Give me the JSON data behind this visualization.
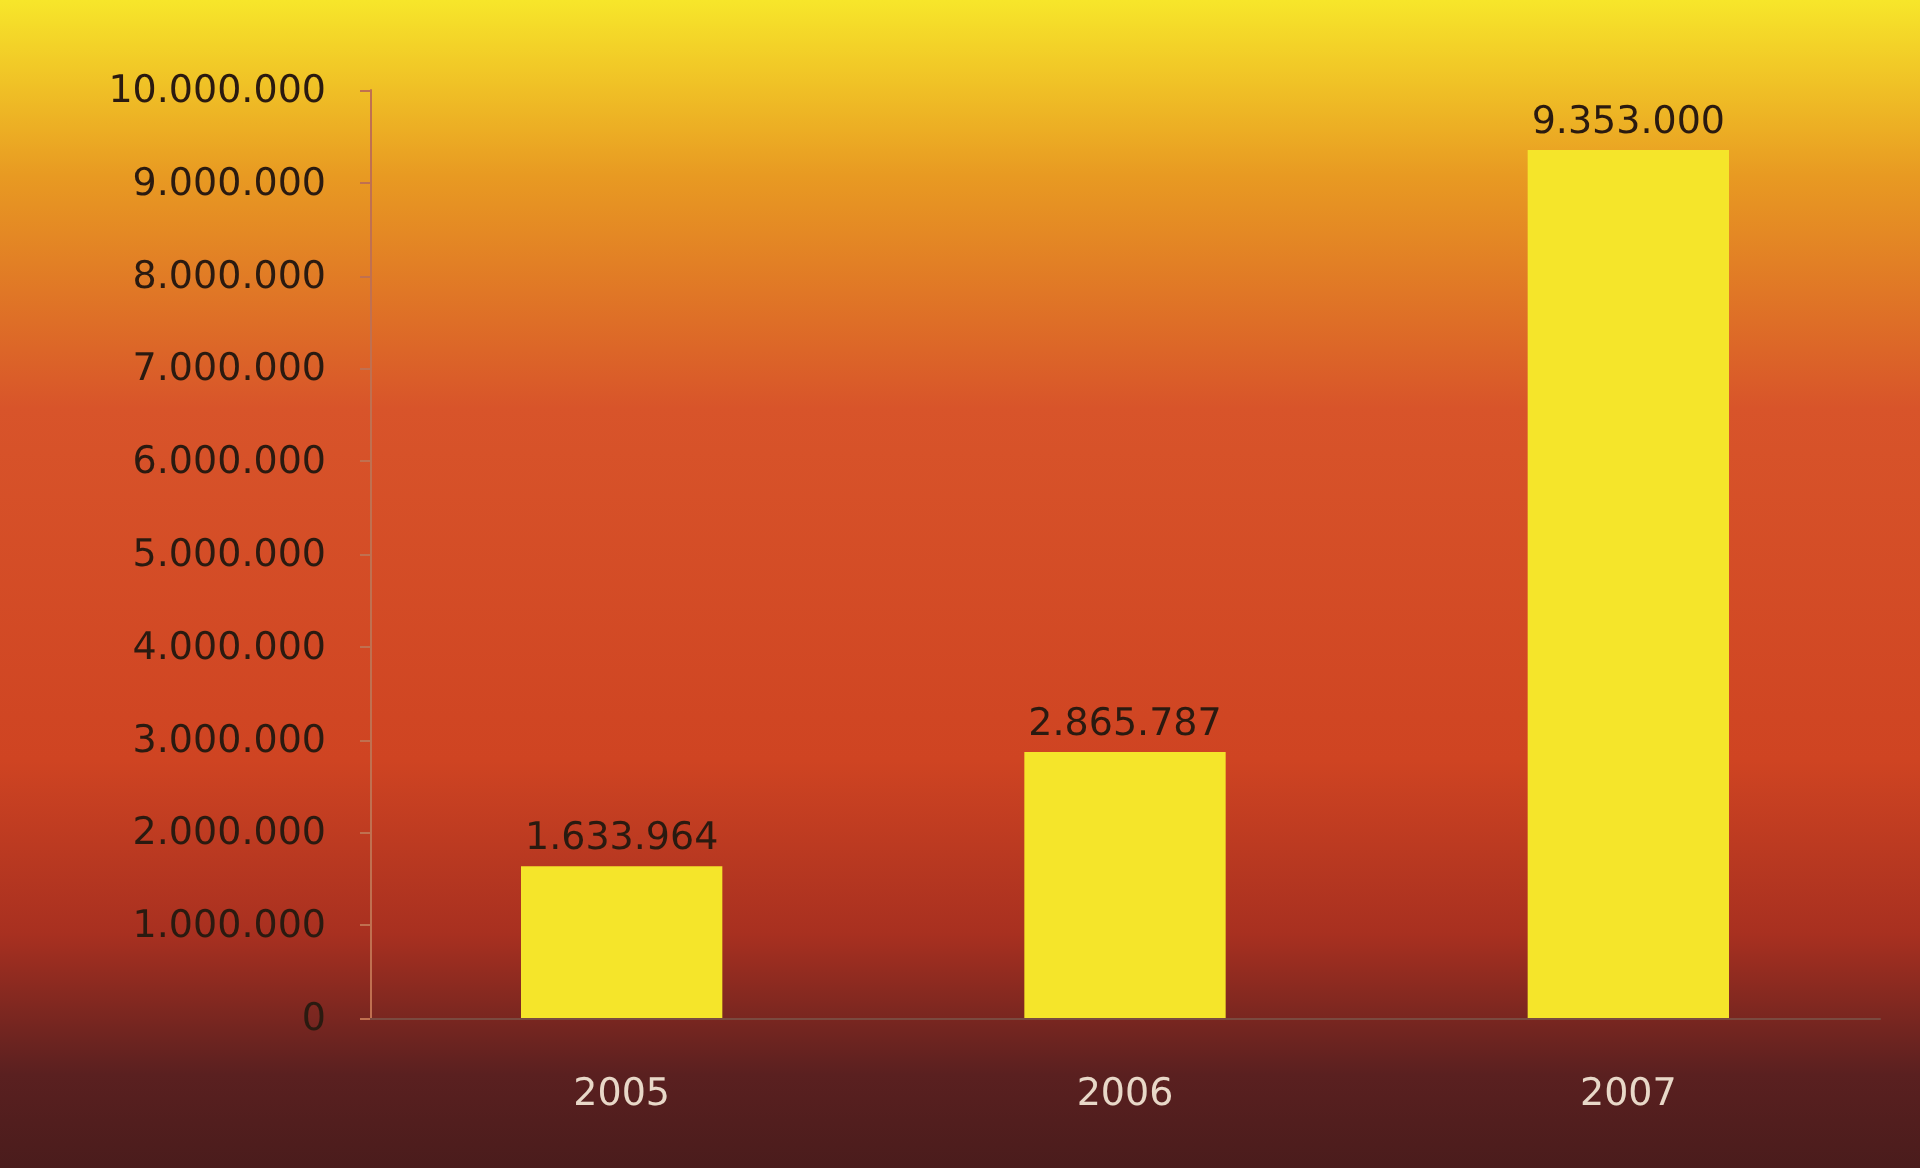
{
  "chart_data": {
    "type": "bar",
    "categories": [
      "2005",
      "2006",
      "2007"
    ],
    "values": [
      1633964,
      2865787,
      9353000
    ],
    "color": "#f5e52a",
    "value_labels": [
      "1.633.964",
      "2.865.787",
      "9.353.000"
    ],
    "ylim": [
      0,
      10000000
    ],
    "yticks": [
      {
        "value": 0,
        "label": "0"
      },
      {
        "value": 1000000,
        "label": "1.000.000"
      },
      {
        "value": 2000000,
        "label": "2.000.000"
      },
      {
        "value": 3000000,
        "label": "3.000.000"
      },
      {
        "value": 4000000,
        "label": "4.000.000"
      },
      {
        "value": 5000000,
        "label": "5.000.000"
      },
      {
        "value": 6000000,
        "label": "6.000.000"
      },
      {
        "value": 7000000,
        "label": "7.000.000"
      },
      {
        "value": 8000000,
        "label": "8.000.000"
      },
      {
        "value": 9000000,
        "label": "9.000.000"
      },
      {
        "value": 10000000,
        "label": "10.000.000"
      }
    ],
    "grid": false
  }
}
